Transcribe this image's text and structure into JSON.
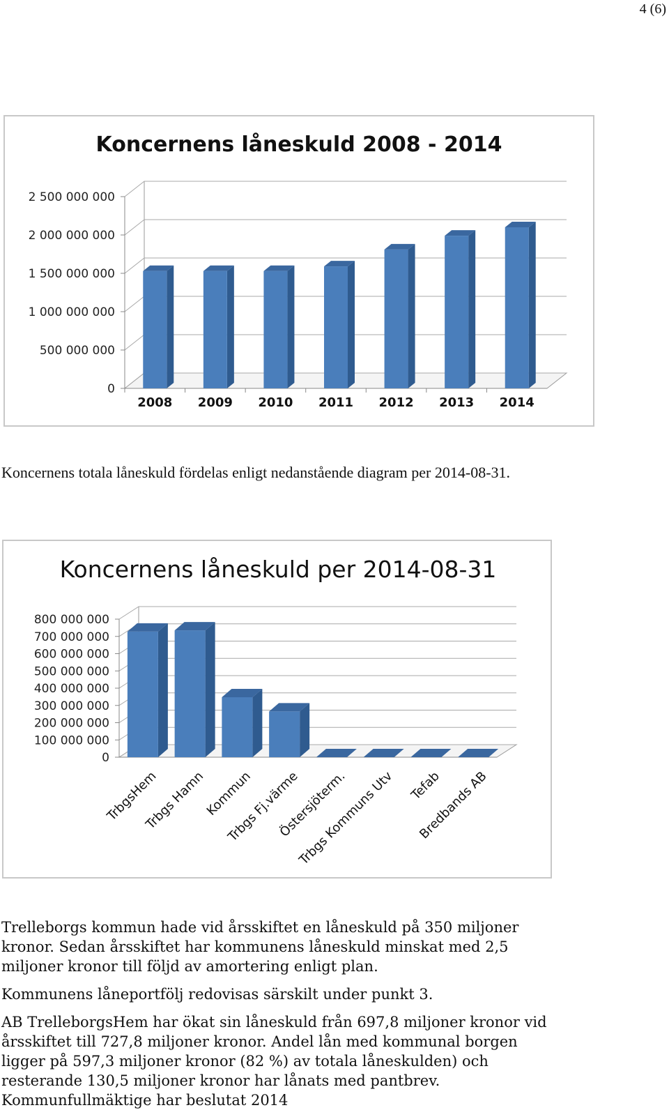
{
  "page": {
    "number": "4 (6)"
  },
  "intro_text": "Koncernens totala låneskuld fördelas enligt nedanstående diagram per 2014-08-31.",
  "chart_data": [
    {
      "type": "bar",
      "title": "Koncernens låneskuld 2008 - 2014",
      "categories": [
        "2008",
        "2009",
        "2010",
        "2011",
        "2012",
        "2013",
        "2014"
      ],
      "values": [
        1530000000,
        1530000000,
        1530000000,
        1590000000,
        1810000000,
        1990000000,
        2100000000
      ],
      "yticks": [
        "0",
        "500 000 000",
        "1 000 000 000",
        "1 500 000 000",
        "2 000 000 000",
        "2 500 000 000"
      ],
      "ylim": [
        0,
        2500000000
      ],
      "xlabel": "",
      "ylabel": "",
      "grid": true,
      "legend": "none",
      "bar_color": "#4a7ebb",
      "bar_side_color": "#2f5b8f",
      "bar_top_color": "#3a679f"
    },
    {
      "type": "bar",
      "title": "Koncernens låneskuld per 2014-08-31",
      "categories": [
        "TrbgsHem",
        "Trbgs Hamn",
        "Kommun",
        "Trbgs Fj.värme",
        "Östersjöterm.",
        "Trbgs Kommuns Utv",
        "Tefab",
        "Bredbands AB"
      ],
      "values": [
        727800000,
        735000000,
        347500000,
        265000000,
        0,
        0,
        0,
        0
      ],
      "yticks": [
        "0",
        "100 000 000",
        "200 000 000",
        "300 000 000",
        "400 000 000",
        "500 000 000",
        "600 000 000",
        "700 000 000",
        "800 000 000"
      ],
      "ylim": [
        0,
        800000000
      ],
      "xlabel": "",
      "ylabel": "",
      "grid": true,
      "legend": "none",
      "bar_color": "#4a7ebb",
      "bar_side_color": "#2f5b8f",
      "bar_top_color": "#3a679f"
    }
  ],
  "paragraphs": [
    "Trelleborgs kommun hade vid årsskiftet en låneskuld på 350 miljoner kronor. Sedan årsskiftet har kommunens låneskuld minskat med 2,5 miljoner kronor till följd av amortering enligt plan.",
    "Kommunens låneportfölj redovisas särskilt under punkt 3.",
    "AB TrelleborgsHem har ökat sin låneskuld från 697,8 miljoner kronor vid årsskiftet till 727,8 miljoner kronor. Andel lån med kommunal borgen ligger på 597,3 miljoner kronor (82 %) av totala låneskulden) och resterande 130,5 miljoner kronor har lånats med pantbrev. Kommunfullmäktige har beslutat 2014"
  ]
}
